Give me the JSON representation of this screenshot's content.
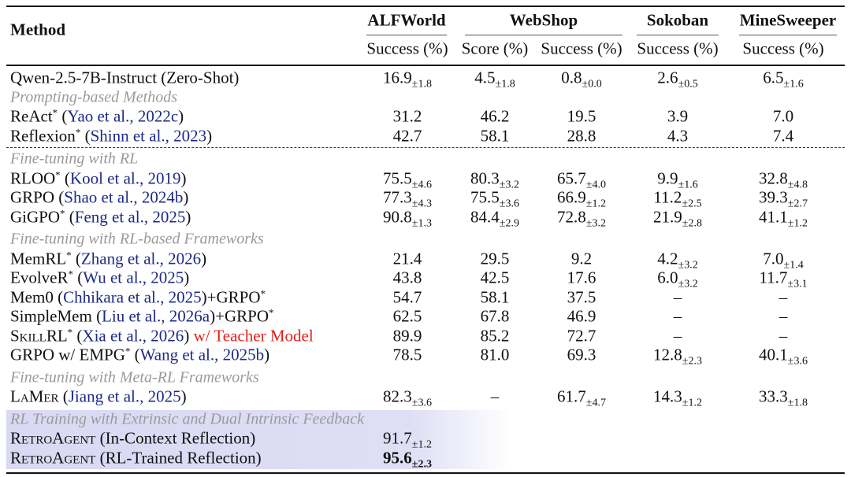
{
  "header": {
    "method": "Method",
    "benchmarks": [
      {
        "name": "ALFWorld",
        "metrics": [
          "Success (%)"
        ]
      },
      {
        "name": "WebShop",
        "metrics": [
          "Score (%)",
          "Success (%)"
        ]
      },
      {
        "name": "Sokoban",
        "metrics": [
          "Success (%)"
        ]
      },
      {
        "name": "MineSweeper",
        "metrics": [
          "Success (%)"
        ]
      }
    ]
  },
  "groups": [
    {
      "rows": [
        {
          "method": [
            {
              "text": "Qwen-2.5-7B-Instruct (Zero-Shot)"
            }
          ],
          "cells": [
            {
              "v": "16.9",
              "s": "±1.8"
            },
            {
              "v": "4.5",
              "s": "±1.8"
            },
            {
              "v": "0.8",
              "s": "±0.0"
            },
            {
              "v": "2.6",
              "s": "±0.5"
            },
            {
              "v": "6.5",
              "s": "±1.6"
            }
          ]
        }
      ]
    },
    {
      "title": "Prompting-based Methods",
      "rows": [
        {
          "method": [
            {
              "text": "ReAct"
            },
            {
              "text": "*",
              "sup": true
            },
            {
              "text": " ("
            },
            {
              "text": "Yao et al., 2022c",
              "cite": true
            },
            {
              "text": ")"
            }
          ],
          "cells": [
            {
              "v": "31.2"
            },
            {
              "v": "46.2"
            },
            {
              "v": "19.5"
            },
            {
              "v": "3.9"
            },
            {
              "v": "7.0"
            }
          ]
        },
        {
          "method": [
            {
              "text": "Reflexion"
            },
            {
              "text": "*",
              "sup": true
            },
            {
              "text": " ("
            },
            {
              "text": "Shinn et al., 2023",
              "cite": true
            },
            {
              "text": ")"
            }
          ],
          "cells": [
            {
              "v": "42.7"
            },
            {
              "v": "58.1"
            },
            {
              "v": "28.8"
            },
            {
              "v": "4.3"
            },
            {
              "v": "7.4"
            }
          ]
        }
      ]
    },
    {
      "title": "Fine-tuning with RL",
      "rows": [
        {
          "method": [
            {
              "text": "RLOO"
            },
            {
              "text": "*",
              "sup": true
            },
            {
              "text": " ("
            },
            {
              "text": "Kool et al., 2019",
              "cite": true
            },
            {
              "text": ")"
            }
          ],
          "cells": [
            {
              "v": "75.5",
              "s": "±4.6"
            },
            {
              "v": "80.3",
              "s": "±3.2"
            },
            {
              "v": "65.7",
              "s": "±4.0"
            },
            {
              "v": "9.9",
              "s": "±1.6"
            },
            {
              "v": "32.8",
              "s": "±4.8"
            }
          ]
        },
        {
          "method": [
            {
              "text": "GRPO ("
            },
            {
              "text": "Shao et al., 2024b",
              "cite": true
            },
            {
              "text": ")"
            }
          ],
          "cells": [
            {
              "v": "77.3",
              "s": "±4.3"
            },
            {
              "v": "75.5",
              "s": "±3.6"
            },
            {
              "v": "66.9",
              "s": "±1.2"
            },
            {
              "v": "11.2",
              "s": "±2.5"
            },
            {
              "v": "39.3",
              "s": "±2.7"
            }
          ]
        },
        {
          "method": [
            {
              "text": "GiGPO"
            },
            {
              "text": "*",
              "sup": true
            },
            {
              "text": " ("
            },
            {
              "text": "Feng et al., 2025",
              "cite": true
            },
            {
              "text": ")"
            }
          ],
          "cells": [
            {
              "v": "90.8",
              "s": "±1.3"
            },
            {
              "v": "84.4",
              "s": "±2.9"
            },
            {
              "v": "72.8",
              "s": "±3.2"
            },
            {
              "v": "21.9",
              "s": "±2.8"
            },
            {
              "v": "41.1",
              "s": "±1.2"
            }
          ]
        }
      ]
    },
    {
      "title": "Fine-tuning with RL-based Frameworks",
      "rows": [
        {
          "method": [
            {
              "text": "MemRL"
            },
            {
              "text": "*",
              "sup": true
            },
            {
              "text": " ("
            },
            {
              "text": "Zhang et al., 2026",
              "cite": true
            },
            {
              "text": ")"
            }
          ],
          "cells": [
            {
              "v": "21.4"
            },
            {
              "v": "29.5"
            },
            {
              "v": "9.2"
            },
            {
              "v": "4.2",
              "s": "±3.2"
            },
            {
              "v": "7.0",
              "s": "±1.4"
            }
          ]
        },
        {
          "method": [
            {
              "text": "EvolveR"
            },
            {
              "text": "*",
              "sup": true
            },
            {
              "text": " ("
            },
            {
              "text": "Wu et al., 2025",
              "cite": true
            },
            {
              "text": ")"
            }
          ],
          "cells": [
            {
              "v": "43.8"
            },
            {
              "v": "42.5"
            },
            {
              "v": "17.6"
            },
            {
              "v": "6.0",
              "s": "±3.2"
            },
            {
              "v": "11.7",
              "s": "±3.1"
            }
          ]
        },
        {
          "method": [
            {
              "text": "Mem0 ("
            },
            {
              "text": "Chhikara et al.,",
              "cite": true
            },
            {
              "text": " "
            },
            {
              "text": "2025",
              "cite": true
            },
            {
              "text": ")+GRPO"
            },
            {
              "text": "*",
              "sup": true
            }
          ],
          "cells": [
            {
              "v": "54.7"
            },
            {
              "v": "58.1"
            },
            {
              "v": "37.5"
            },
            {
              "v": "–"
            },
            {
              "v": "–"
            }
          ]
        },
        {
          "method": [
            {
              "text": "SimpleMem ("
            },
            {
              "text": "Liu et al., 2026a",
              "cite": true
            },
            {
              "text": ")+GRPO"
            },
            {
              "text": "*",
              "sup": true
            }
          ],
          "cells": [
            {
              "v": "62.5"
            },
            {
              "v": "67.8"
            },
            {
              "v": "46.9"
            },
            {
              "v": "–"
            },
            {
              "v": "–"
            }
          ]
        },
        {
          "method": [
            {
              "text": "SkillRL",
              "sc": true
            },
            {
              "text": "*",
              "sup": true
            },
            {
              "text": " ("
            },
            {
              "text": "Xia et al., 2026",
              "cite": true
            },
            {
              "text": ") "
            },
            {
              "text": "w/ Teacher Model",
              "note": true
            }
          ],
          "cells": [
            {
              "v": "89.9"
            },
            {
              "v": "85.2"
            },
            {
              "v": "72.7"
            },
            {
              "v": "–"
            },
            {
              "v": "–"
            }
          ]
        },
        {
          "method": [
            {
              "text": "GRPO w/ EMPG"
            },
            {
              "text": "*",
              "sup": true
            },
            {
              "text": " ("
            },
            {
              "text": "Wang et al., 2025b",
              "cite": true
            },
            {
              "text": ")"
            }
          ],
          "cells": [
            {
              "v": "78.5"
            },
            {
              "v": "81.0"
            },
            {
              "v": "69.3"
            },
            {
              "v": "12.8",
              "s": "±2.3"
            },
            {
              "v": "40.1",
              "s": "±3.6"
            }
          ]
        }
      ]
    },
    {
      "title": "Fine-tuning with Meta-RL Frameworks",
      "rows": [
        {
          "method": [
            {
              "text": "LaMer",
              "sc": true
            },
            {
              "text": " ("
            },
            {
              "text": "Jiang et al., 2025",
              "cite": true
            },
            {
              "text": ")"
            }
          ],
          "cells": [
            {
              "v": "82.3",
              "s": "±3.6"
            },
            {
              "v": "–"
            },
            {
              "v": "61.7",
              "s": "±4.7"
            },
            {
              "v": "14.3",
              "s": "±1.2"
            },
            {
              "v": "33.3",
              "s": "±1.8"
            }
          ]
        }
      ]
    },
    {
      "title": "RL Training with Extrinsic and Dual Intrinsic Feedback",
      "rows": [
        {
          "method": [
            {
              "text": "RetroAgent",
              "sc": true
            },
            {
              "text": " (In-Context Reflection)"
            }
          ],
          "cells": [
            {
              "v": "91.7",
              "s": "±1.2"
            },
            null,
            null,
            null,
            null
          ]
        },
        {
          "method": [
            {
              "text": "RetroAgent",
              "sc": true
            },
            {
              "text": " (RL-Trained Reflection)"
            }
          ],
          "cells": [
            {
              "v": "95.6",
              "s": "±2.3",
              "b": true
            },
            null,
            null,
            null,
            null
          ]
        }
      ]
    }
  ]
}
